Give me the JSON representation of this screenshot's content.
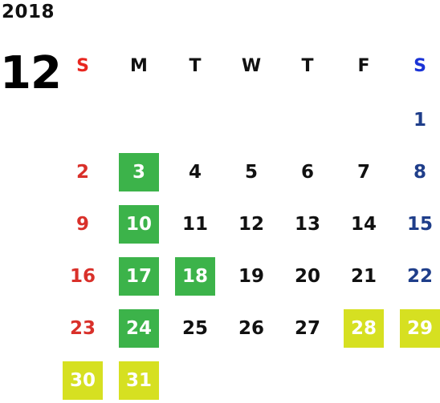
{
  "year": "2018",
  "month": "12",
  "weekdays": [
    "S",
    "M",
    "T",
    "W",
    "T",
    "F",
    "S"
  ],
  "weeks": [
    [
      "",
      "",
      "",
      "",
      "",
      "",
      "1"
    ],
    [
      "2",
      "3",
      "4",
      "5",
      "6",
      "7",
      "8"
    ],
    [
      "9",
      "10",
      "11",
      "12",
      "13",
      "14",
      "15"
    ],
    [
      "16",
      "17",
      "18",
      "19",
      "20",
      "21",
      "22"
    ],
    [
      "23",
      "24",
      "25",
      "26",
      "27",
      "28",
      "29"
    ],
    [
      "30",
      "31",
      "",
      "",
      "",
      "",
      ""
    ]
  ],
  "highlights": {
    "green": [
      "3",
      "10",
      "17",
      "18",
      "24"
    ],
    "yellow": [
      "28",
      "29",
      "30",
      "31"
    ]
  },
  "colors": {
    "sunday": "#d9302a",
    "saturday": "#1f3e8a",
    "green_highlight": "#3cb34a",
    "yellow_highlight": "#d6e021"
  }
}
